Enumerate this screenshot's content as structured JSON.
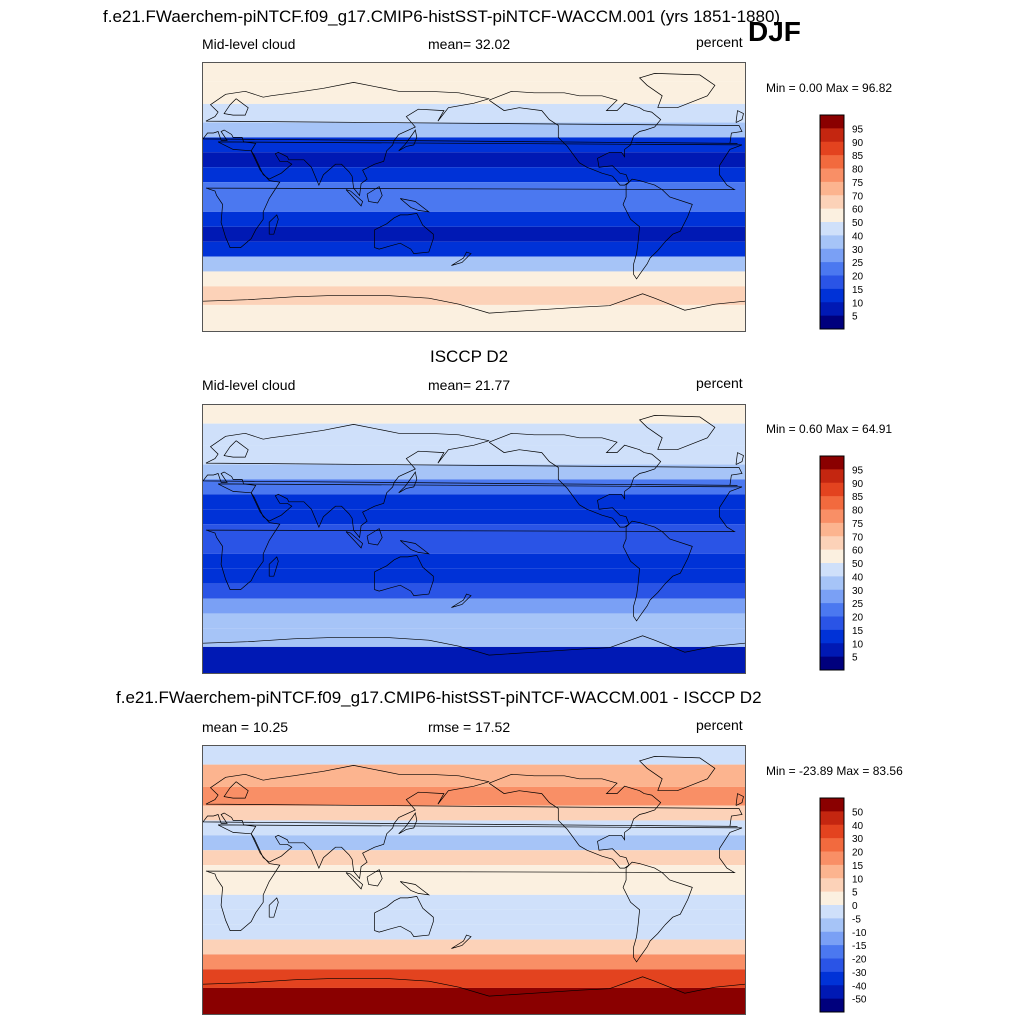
{
  "figure": {
    "main_title": "f.e21.FWaerchem-piNTCF.f09_g17.CMIP6-histSST-piNTCF-WACCM.001 (yrs 1851-1880)",
    "season": "DJF"
  },
  "colors": {
    "abs_scale": [
      "#00007d",
      "#0019b4",
      "#0032d7",
      "#2a54e6",
      "#4b78f0",
      "#7aa0f5",
      "#a6c4f7",
      "#cfe0fa",
      "#fbf0e0",
      "#fcd2b8",
      "#fcb48f",
      "#f98f66",
      "#f26a3e",
      "#e3431f",
      "#c42610",
      "#8a0000"
    ],
    "diff_scale": [
      "#00007d",
      "#0019b4",
      "#0032d7",
      "#2a54e6",
      "#4b78f0",
      "#7aa0f5",
      "#a6c4f7",
      "#cfe0fa",
      "#fbf0e0",
      "#fcd2b8",
      "#fcb48f",
      "#f98f66",
      "#f26a3e",
      "#e3431f",
      "#c42610",
      "#8a0000"
    ],
    "coastline": "#000000"
  },
  "chart_data": [
    {
      "type": "heatmap",
      "panel": "model",
      "left_label": "Mid-level cloud",
      "mean_label": "mean=  32.02",
      "units": "percent",
      "minmax": "Min =   0.00 Max =  96.82",
      "min": 0.0,
      "max": 96.82,
      "mean": 32.02,
      "colorbar_levels": [
        "5",
        "10",
        "15",
        "20",
        "25",
        "30",
        "40",
        "50",
        "60",
        "70",
        "75",
        "80",
        "85",
        "90",
        "95"
      ],
      "lat_bands": {
        "lat": [
          85,
          70,
          55,
          45,
          35,
          25,
          15,
          5,
          -5,
          -15,
          -25,
          -35,
          -45,
          -55,
          -65,
          -80
        ],
        "zonal_mean_percent": [
          52,
          55,
          45,
          30,
          12,
          8,
          10,
          22,
          20,
          12,
          8,
          14,
          35,
          52,
          62,
          55
        ]
      }
    },
    {
      "type": "heatmap",
      "panel": "obs",
      "header": "ISCCP D2",
      "left_label": "Mid-level cloud",
      "mean_label": "mean=  21.77",
      "units": "percent",
      "minmax": "Min =   0.60 Max =  64.91",
      "min": 0.6,
      "max": 64.91,
      "mean": 21.77,
      "colorbar_levels": [
        "5",
        "10",
        "15",
        "20",
        "25",
        "30",
        "40",
        "50",
        "60",
        "70",
        "75",
        "80",
        "85",
        "90",
        "95"
      ],
      "lat_bands": {
        "lat": [
          85,
          70,
          55,
          45,
          35,
          25,
          15,
          5,
          -5,
          -15,
          -25,
          -35,
          -45,
          -55,
          -65,
          -80
        ],
        "zonal_mean_percent": [
          58,
          48,
          40,
          32,
          22,
          14,
          12,
          18,
          16,
          14,
          12,
          16,
          28,
          36,
          30,
          6
        ]
      }
    },
    {
      "type": "heatmap",
      "panel": "difference",
      "header": "f.e21.FWaerchem-piNTCF.f09_g17.CMIP6-histSST-piNTCF-WACCM.001 - ISCCP D2",
      "mean_label": "mean =  10.25",
      "rmse_label": "rmse =  17.52",
      "units": "percent",
      "minmax": "Min = -23.89 Max =  83.56",
      "min": -23.89,
      "max": 83.56,
      "mean": 10.25,
      "rmse": 17.52,
      "colorbar_levels": [
        "-50",
        "-40",
        "-30",
        "-20",
        "-15",
        "-10",
        "-5",
        "0",
        "5",
        "10",
        "15",
        "20",
        "30",
        "40",
        "50"
      ],
      "lat_bands": {
        "lat": [
          85,
          70,
          55,
          45,
          35,
          25,
          15,
          5,
          -5,
          -15,
          -25,
          -35,
          -45,
          -55,
          -65,
          -80
        ],
        "zonal_mean_percent": [
          -5,
          12,
          15,
          8,
          -3,
          -6,
          5,
          4,
          2,
          -4,
          -5,
          -2,
          8,
          18,
          32,
          50
        ]
      }
    }
  ]
}
